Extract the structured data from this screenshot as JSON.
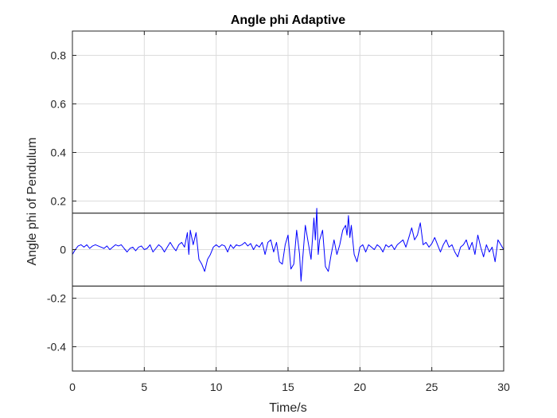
{
  "chart_data": {
    "type": "line",
    "title": "Angle phi Adaptive",
    "xlabel": "Time/s",
    "ylabel": "Angle phi of Pendulum",
    "xlim": [
      0,
      30
    ],
    "ylim": [
      -0.5,
      0.9
    ],
    "xticks": [
      0,
      5,
      10,
      15,
      20,
      25,
      30
    ],
    "xtick_labels": [
      "0",
      "5",
      "10",
      "15",
      "20",
      "25",
      "30"
    ],
    "yticks": [
      -0.4,
      -0.2,
      0,
      0.2,
      0.4,
      0.6,
      0.8
    ],
    "ytick_labels": [
      "-0.4",
      "-0.2",
      "0",
      "0.2",
      "0.4",
      "0.6",
      "0.8"
    ],
    "grid": true,
    "reference_lines": [
      0.15,
      -0.15
    ],
    "colors": {
      "series": "#0000ff",
      "reference": "#000000",
      "grid": "#dcdcdc",
      "axes": "#262626"
    },
    "series": [
      {
        "x": [
          0,
          0.2,
          0.4,
          0.6,
          0.8,
          1.0,
          1.2,
          1.4,
          1.6,
          1.8,
          2.0,
          2.2,
          2.4,
          2.6,
          2.8,
          3.0,
          3.2,
          3.4,
          3.6,
          3.8,
          4.0,
          4.2,
          4.4,
          4.6,
          4.8,
          5.0,
          5.2,
          5.4,
          5.6,
          5.8,
          6.0,
          6.2,
          6.4,
          6.6,
          6.8,
          7.0,
          7.2,
          7.4,
          7.6,
          7.8,
          8.0,
          8.1,
          8.2,
          8.4,
          8.6,
          8.8,
          9.0,
          9.2,
          9.4,
          9.6,
          9.8,
          10.0,
          10.2,
          10.4,
          10.6,
          10.8,
          11.0,
          11.2,
          11.4,
          11.6,
          11.8,
          12.0,
          12.2,
          12.4,
          12.6,
          12.8,
          13.0,
          13.2,
          13.4,
          13.6,
          13.8,
          14.0,
          14.2,
          14.4,
          14.6,
          14.8,
          15.0,
          15.2,
          15.4,
          15.6,
          15.8,
          15.9,
          16.0,
          16.2,
          16.4,
          16.6,
          16.8,
          16.9,
          17.0,
          17.1,
          17.2,
          17.4,
          17.6,
          17.8,
          18.0,
          18.2,
          18.4,
          18.6,
          18.8,
          19.0,
          19.1,
          19.2,
          19.3,
          19.4,
          19.6,
          19.8,
          20.0,
          20.2,
          20.4,
          20.6,
          20.8,
          21.0,
          21.2,
          21.4,
          21.6,
          21.8,
          22.0,
          22.2,
          22.4,
          22.6,
          22.8,
          23.0,
          23.2,
          23.4,
          23.6,
          23.8,
          24.0,
          24.2,
          24.4,
          24.6,
          24.8,
          25.0,
          25.2,
          25.4,
          25.6,
          25.8,
          26.0,
          26.2,
          26.4,
          26.6,
          26.8,
          27.0,
          27.2,
          27.4,
          27.6,
          27.8,
          28.0,
          28.2,
          28.4,
          28.6,
          28.8,
          29.0,
          29.2,
          29.4,
          29.6,
          29.8,
          30.0
        ],
        "y": [
          -0.02,
          0.0,
          0.015,
          0.02,
          0.01,
          0.02,
          0.005,
          0.015,
          0.02,
          0.015,
          0.01,
          0.005,
          0.015,
          0.0,
          0.01,
          0.02,
          0.015,
          0.02,
          0.005,
          -0.01,
          0.005,
          0.01,
          -0.005,
          0.01,
          0.015,
          0.0,
          0.005,
          0.02,
          -0.01,
          0.005,
          0.02,
          0.01,
          -0.01,
          0.01,
          0.03,
          0.01,
          -0.005,
          0.02,
          0.03,
          0.01,
          0.07,
          -0.02,
          0.08,
          0.02,
          0.07,
          -0.04,
          -0.06,
          -0.09,
          -0.04,
          -0.02,
          0.01,
          0.02,
          0.01,
          0.02,
          0.015,
          -0.01,
          0.02,
          0.005,
          0.02,
          0.015,
          0.02,
          0.03,
          0.015,
          0.025,
          0.0,
          0.02,
          0.01,
          0.03,
          -0.02,
          0.03,
          0.04,
          -0.01,
          0.03,
          -0.05,
          -0.06,
          0.02,
          0.06,
          -0.08,
          -0.06,
          0.08,
          -0.02,
          -0.13,
          -0.05,
          0.1,
          0.03,
          -0.04,
          0.13,
          0.04,
          0.17,
          -0.02,
          0.04,
          0.08,
          -0.07,
          -0.09,
          -0.02,
          0.04,
          -0.02,
          0.02,
          0.08,
          0.1,
          0.06,
          0.14,
          0.05,
          0.1,
          -0.02,
          -0.05,
          0.01,
          0.02,
          -0.01,
          0.02,
          0.01,
          0.0,
          0.02,
          0.01,
          -0.01,
          0.02,
          0.01,
          0.02,
          0.0,
          0.02,
          0.03,
          0.04,
          0.01,
          0.05,
          0.09,
          0.04,
          0.06,
          0.11,
          0.02,
          0.03,
          0.01,
          0.025,
          0.05,
          0.02,
          -0.01,
          0.02,
          0.04,
          0.01,
          0.02,
          -0.01,
          -0.03,
          0.01,
          0.02,
          0.04,
          0.0,
          0.03,
          -0.02,
          0.06,
          0.01,
          -0.03,
          0.02,
          -0.01,
          0.01,
          -0.05,
          0.04,
          0.02,
          0.0
        ]
      }
    ]
  }
}
